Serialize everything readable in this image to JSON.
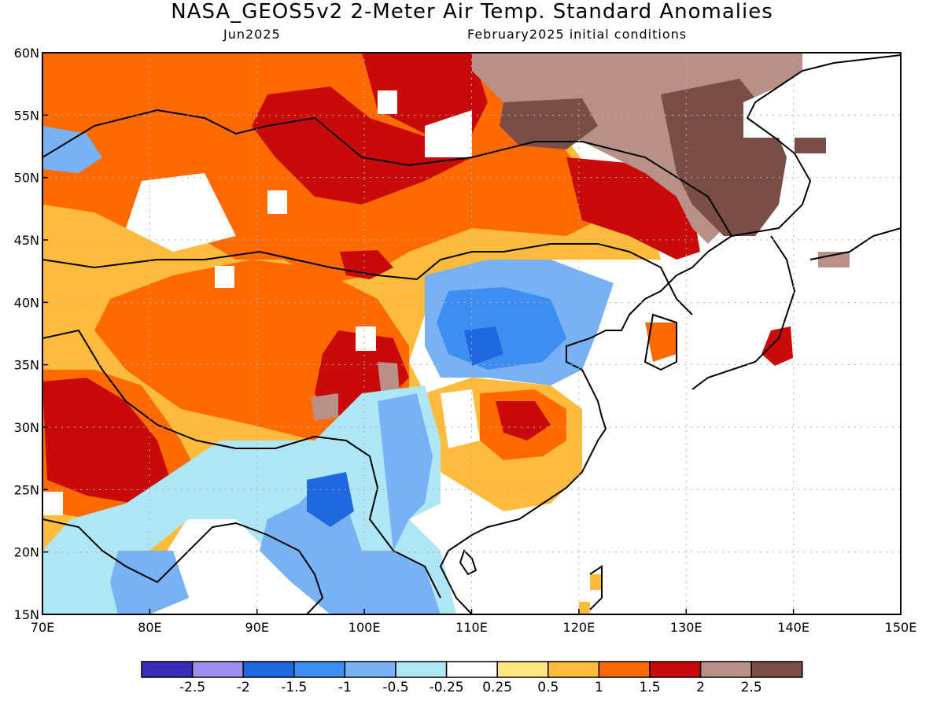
{
  "header": {
    "title": "NASA_GEOS5v2 2-Meter Air Temp. Standard Anomalies",
    "month": "Jun2025",
    "init": "February2025 initial conditions"
  },
  "map": {
    "lon_ticks": [
      "70E",
      "80E",
      "90E",
      "100E",
      "110E",
      "120E",
      "130E",
      "140E",
      "150E"
    ],
    "lat_ticks": [
      "15N",
      "20N",
      "25N",
      "30N",
      "35N",
      "40N",
      "45N",
      "50N",
      "55N",
      "60N"
    ]
  },
  "colorbar": {
    "colors": [
      "#3a2cb8",
      "#9d8ef0",
      "#1f68e0",
      "#3d8ef0",
      "#78b2f5",
      "#aee6f6",
      "#ffffff",
      "#ffe680",
      "#ffbb3c",
      "#ff6a00",
      "#c80a0a",
      "#b89088",
      "#7a4e46"
    ],
    "labels": [
      "-2.5",
      "-2",
      "-1.5",
      "-1",
      "-0.5",
      "-0.25",
      "0.25",
      "0.5",
      "1",
      "1.5",
      "2",
      "2.5"
    ]
  }
}
